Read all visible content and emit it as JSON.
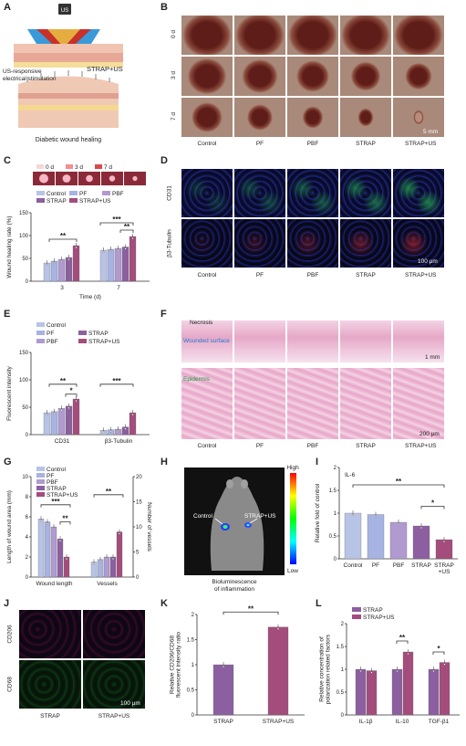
{
  "panel_labels": [
    "A",
    "B",
    "C",
    "D",
    "E",
    "F",
    "G",
    "H",
    "I",
    "J",
    "K",
    "L"
  ],
  "colors": {
    "control": "#b8c4e6",
    "pf": "#a7b3e2",
    "pbf": "#b09ad0",
    "strap": "#8c5fa0",
    "strap_us": "#a44c7c",
    "wound": "#7a2a22",
    "tissue": "#e8b0c8",
    "fluor_bg": "#0a0a1e"
  },
  "panelA": {
    "us_label": "US",
    "text_left": "US-responsive\nelectrical stimulation",
    "text_right": "STRAP+US",
    "bottom_label": "Diabetic wound healing"
  },
  "panelB": {
    "columns": [
      "Control",
      "PF",
      "PBF",
      "STRAP",
      "STRAP+US"
    ],
    "rows": [
      "0 d",
      "3 d",
      "7 d"
    ],
    "scale": "5 mm"
  },
  "panelC": {
    "legend_days": [
      "0 d",
      "3 d",
      "7 d"
    ],
    "legend_groups": [
      "Control",
      "PF",
      "PBF",
      "STRAP",
      "STRAP+US"
    ],
    "sig": [
      "**",
      "***",
      "**"
    ]
  },
  "panelD": {
    "rows": [
      "CD31",
      "β3-Tubulin"
    ],
    "columns": [
      "Control",
      "PF",
      "PBF",
      "STRAP",
      "STRAP+US"
    ],
    "scale": "100 μm"
  },
  "panelE": {
    "legend": [
      "Control",
      "PF",
      "STRAP",
      "PBF",
      "STRAP+US"
    ],
    "sig": [
      "**",
      "*",
      "***"
    ]
  },
  "panelF": {
    "columns": [
      "Control",
      "PF",
      "PBF",
      "STRAP",
      "STRAP+US"
    ],
    "necrosis": "Necrosis",
    "wounded": "Wounded surface",
    "epidermis": "Epidermis",
    "scale_top": "1 mm",
    "scale_bottom": "200 μm"
  },
  "panelG": {
    "legend": [
      "Control",
      "PF",
      "PBF",
      "STRAP",
      "STRAP+US"
    ],
    "sig": [
      "***",
      "**",
      "**"
    ]
  },
  "panelH": {
    "left": "Control",
    "right": "STRAP+US",
    "high": "High",
    "low": "Low",
    "caption": "Bioluminescence\nof inflammation"
  },
  "panelI": {
    "title": "IL-6",
    "sig": [
      "**",
      "*"
    ]
  },
  "panelJ": {
    "rows": [
      "CD206",
      "CD68"
    ],
    "columns": [
      "STRAP",
      "STRAP+US"
    ],
    "scale": "100 μm"
  },
  "panelK": {
    "sig": "**"
  },
  "panelL": {
    "legend": [
      "STRAP",
      "STRAP+US"
    ],
    "sig": [
      "**",
      "*"
    ]
  },
  "chart_data": [
    {
      "id": "C",
      "type": "bar",
      "xlabel": "Time (d)",
      "ylabel": "Wound healing rate (%)",
      "categories": [
        "3",
        "7"
      ],
      "ylim": [
        0,
        150
      ],
      "yticks": [
        0,
        50,
        100,
        150
      ],
      "series": [
        {
          "name": "Control",
          "values": [
            40,
            68
          ]
        },
        {
          "name": "PF",
          "values": [
            44,
            70
          ]
        },
        {
          "name": "PBF",
          "values": [
            48,
            72
          ]
        },
        {
          "name": "STRAP",
          "values": [
            52,
            75
          ]
        },
        {
          "name": "STRAP+US",
          "values": [
            78,
            98
          ]
        }
      ]
    },
    {
      "id": "E",
      "type": "bar",
      "ylabel": "Fluorescent intensity",
      "categories": [
        "CD31",
        "β3-Tubulin"
      ],
      "ylim": [
        0,
        150
      ],
      "yticks": [
        0,
        50,
        100,
        150
      ],
      "series": [
        {
          "name": "Control",
          "values": [
            40,
            8
          ]
        },
        {
          "name": "PF",
          "values": [
            42,
            9
          ]
        },
        {
          "name": "PBF",
          "values": [
            48,
            10
          ]
        },
        {
          "name": "STRAP",
          "values": [
            52,
            14
          ]
        },
        {
          "name": "STRAP+US",
          "values": [
            65,
            40
          ]
        }
      ]
    },
    {
      "id": "G",
      "type": "bar",
      "ylabel": "Length of wound area (mm)",
      "ylabel_right": "Number of vessels",
      "categories": [
        "Wound length",
        "Vessels"
      ],
      "ylim": [
        0,
        10
      ],
      "yticks": [
        0,
        2,
        4,
        6,
        8,
        10
      ],
      "ylim_right": [
        0,
        20
      ],
      "yticks_right": [
        0,
        5,
        10,
        15,
        20
      ],
      "series": [
        {
          "name": "Control",
          "values": [
            5.8,
            3
          ]
        },
        {
          "name": "PF",
          "values": [
            5.5,
            3.5
          ]
        },
        {
          "name": "PBF",
          "values": [
            5.0,
            4
          ]
        },
        {
          "name": "STRAP",
          "values": [
            3.8,
            4
          ]
        },
        {
          "name": "STRAP+US",
          "values": [
            2.0,
            9
          ]
        }
      ]
    },
    {
      "id": "I",
      "type": "bar",
      "ylabel": "Relative fold of control",
      "categories": [
        "Control",
        "PF",
        "PBF",
        "STRAP",
        "STRAP\n+US"
      ],
      "ylim": [
        0,
        2.0
      ],
      "yticks": [
        0,
        0.5,
        1.0,
        1.5,
        2.0
      ],
      "values": [
        1.0,
        0.97,
        0.8,
        0.72,
        0.42
      ]
    },
    {
      "id": "K",
      "type": "bar",
      "ylabel": "Relative CD206/CD68\nfluorescent intensity ratio",
      "categories": [
        "STRAP",
        "STRAP+US"
      ],
      "ylim": [
        0,
        2.0
      ],
      "yticks": [
        0,
        0.5,
        1.0,
        1.5,
        2.0
      ],
      "values": [
        1.0,
        1.75
      ]
    },
    {
      "id": "L",
      "type": "bar",
      "ylabel": "Relative concentration of\npolarization related factors",
      "categories": [
        "IL-1β",
        "IL-10",
        "TGF-β1"
      ],
      "ylim": [
        0,
        2.0
      ],
      "yticks": [
        0,
        0.5,
        1.0,
        1.5,
        2.0
      ],
      "series": [
        {
          "name": "STRAP",
          "values": [
            1.0,
            1.0,
            1.0
          ]
        },
        {
          "name": "STRAP+US",
          "values": [
            0.97,
            1.38,
            1.15
          ]
        }
      ]
    }
  ]
}
